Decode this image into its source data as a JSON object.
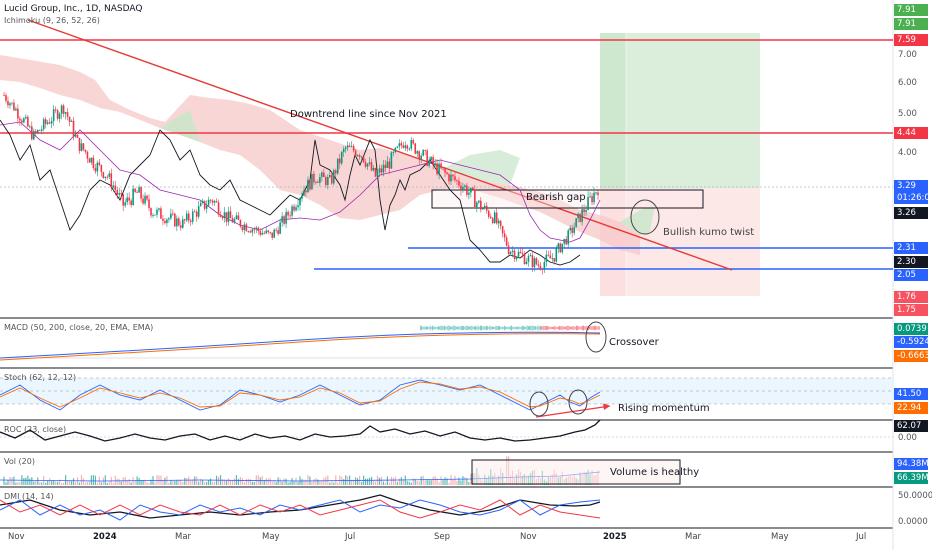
{
  "header": {
    "title": "Lucid Group, Inc., 1D, NASDAQ",
    "ichimoku_label": "Ichimoku (9, 26, 52, 26)"
  },
  "indicators": {
    "macd": "MACD (50, 200, close, 20, EMA, EMA)",
    "stoch": "Stoch (62, 12, 12)",
    "roc": "ROC (23, close)",
    "vol": "Vol (20)",
    "dmi": "DMI (14, 14)"
  },
  "annotations": {
    "downtrend": "Downtrend line since Nov 2021",
    "bearish_gap": "Bearish gap",
    "kumo_twist": "Bullish kumo twist",
    "crossover": "Crossover",
    "momentum": "Rising momentum",
    "volume": "Volume is healthy"
  },
  "price_axis": {
    "ticks": [
      "7.00",
      "6.00",
      "5.00",
      "4.00"
    ],
    "ticks_low": [
      "3.29"
    ],
    "tags": [
      {
        "text": "7.91",
        "color": "#4caf50",
        "price": 7.91
      },
      {
        "text": "7.91",
        "color": "#4caf50",
        "price": 7.91
      },
      {
        "text": "7.59",
        "color": "#f23645",
        "price": 7.59
      },
      {
        "text": "4.44",
        "color": "#f23645",
        "price": 4.44
      },
      {
        "text": "3.29",
        "color": "#2962ff",
        "price": 3.29
      },
      {
        "text": "01:26:08",
        "color": "#2962ff",
        "price": 3.29
      },
      {
        "text": "3.26",
        "color": "#131722",
        "price": 3.26
      },
      {
        "text": "2.31",
        "color": "#2962ff",
        "price": 2.31
      },
      {
        "text": "2.30",
        "color": "#131722",
        "price": 2.3
      },
      {
        "text": "2.05",
        "color": "#2962ff",
        "price": 2.05
      },
      {
        "text": "1.76",
        "color": "#f7525f",
        "price": 1.76
      },
      {
        "text": "1.75",
        "color": "#f7525f",
        "price": 1.75
      }
    ]
  },
  "indicator_axis": {
    "macd_tags": [
      {
        "text": "0.0739",
        "color": "#089981"
      },
      {
        "text": "-0.5924",
        "color": "#2962ff"
      },
      {
        "text": "-0.6663",
        "color": "#ff6d00"
      }
    ],
    "stoch_tags": [
      {
        "text": "41.50",
        "color": "#2962ff"
      },
      {
        "text": "22.94",
        "color": "#ff6d00"
      }
    ],
    "roc_tag": {
      "text": "62.07",
      "color": "#131722"
    },
    "roc_zero": "0.00",
    "vol_tags": [
      {
        "text": "94.38M",
        "color": "#2962ff"
      },
      {
        "text": "66.39M",
        "color": "#089981"
      }
    ],
    "dmi_ticks": [
      "50.0000",
      "0.0000"
    ]
  },
  "x_axis": {
    "labels": [
      {
        "text": "Nov",
        "bold": false
      },
      {
        "text": "2024",
        "bold": true
      },
      {
        "text": "Mar",
        "bold": false
      },
      {
        "text": "May",
        "bold": false
      },
      {
        "text": "Jul",
        "bold": false
      },
      {
        "text": "Sep",
        "bold": false
      },
      {
        "text": "Nov",
        "bold": false
      },
      {
        "text": "2025",
        "bold": true
      },
      {
        "text": "Mar",
        "bold": false
      },
      {
        "text": "May",
        "bold": false
      },
      {
        "text": "Jul",
        "bold": false
      }
    ]
  },
  "colors": {
    "up": "#089981",
    "down": "#f23645",
    "resistance": "#f23645",
    "support": "#2962ff",
    "trendline": "#e53935",
    "kumo_bear": "#f7c8c8",
    "kumo_bull": "#c8e6c9"
  },
  "chart_data": {
    "type": "candlestick",
    "symbol": "LCID",
    "interval": "1D",
    "price_levels": {
      "resistance": [
        7.59,
        4.44
      ],
      "support": [
        2.31,
        2.05
      ],
      "current": 3.29,
      "gap": [
        3.26,
        3.0
      ],
      "target_zone": [
        3.29,
        7.91
      ],
      "stop_zone": [
        3.29,
        1.76
      ]
    },
    "approx_closes": [
      5.6,
      5.0,
      4.4,
      4.8,
      5.2,
      4.2,
      3.8,
      3.5,
      3.0,
      3.2,
      2.9,
      2.8,
      2.7,
      2.9,
      3.1,
      2.8,
      2.7,
      2.6,
      2.5,
      2.8,
      3.2,
      3.5,
      3.4,
      4.1,
      4.0,
      3.5,
      3.8,
      4.3,
      4.0,
      3.7,
      3.5,
      3.3,
      3.0,
      2.8,
      2.3,
      2.2,
      2.1,
      2.2,
      2.5,
      2.9,
      3.29
    ]
  }
}
